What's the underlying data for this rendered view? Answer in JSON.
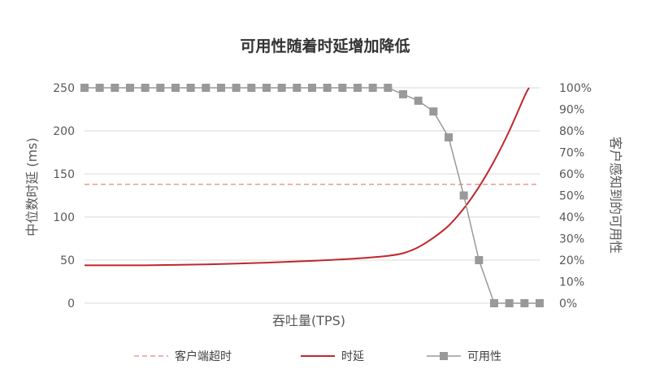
{
  "chart_data": {
    "type": "line",
    "title": "可用性随着时延增加降低",
    "xlabel": "吞吐量(TPS)",
    "ylabel_left": "中位数时延 (ms)",
    "ylabel_right": "客户感知到的可用性",
    "ylim_left": [
      0,
      250
    ],
    "ylim_right": [
      0,
      1
    ],
    "yticks_left": [
      "0",
      "50",
      "100",
      "150",
      "200",
      "250"
    ],
    "yticks_right": [
      "0%",
      "10%",
      "20%",
      "30%",
      "40%",
      "50%",
      "60%",
      "70%",
      "80%",
      "90%",
      "100%"
    ],
    "xlim": [
      0,
      30
    ],
    "grid": true,
    "legend_position": "bottom",
    "series": [
      {
        "name": "客户端超时",
        "axis": "left",
        "color": "#e8999a",
        "style": "dashed",
        "x": [
          0,
          30
        ],
        "values": [
          138,
          138
        ]
      },
      {
        "name": "时延",
        "axis": "left",
        "color": "#c0272d",
        "style": "solid",
        "x": [
          0,
          2,
          4,
          6,
          8,
          10,
          12,
          14,
          16,
          18,
          20,
          21,
          22,
          23,
          24,
          25,
          26,
          27,
          28,
          29,
          29.3
        ],
        "values": [
          44,
          44,
          44,
          44.5,
          45,
          46,
          47,
          48.5,
          50,
          52,
          55,
          58,
          65,
          76,
          90,
          110,
          135,
          165,
          200,
          240,
          250
        ]
      },
      {
        "name": "可用性",
        "axis": "right",
        "color": "#999999",
        "marker_color": "#999999",
        "style": "solid-square-markers",
        "x": [
          0,
          1,
          2,
          3,
          4,
          5,
          6,
          7,
          8,
          9,
          10,
          11,
          12,
          13,
          14,
          15,
          16,
          17,
          18,
          19,
          20,
          21,
          22,
          23,
          24,
          25,
          26,
          27,
          28,
          29,
          30
        ],
        "values": [
          1,
          1,
          1,
          1,
          1,
          1,
          1,
          1,
          1,
          1,
          1,
          1,
          1,
          1,
          1,
          1,
          1,
          1,
          1,
          1,
          1,
          0.97,
          0.94,
          0.89,
          0.77,
          0.5,
          0.2,
          0,
          0,
          0,
          0
        ]
      }
    ]
  }
}
